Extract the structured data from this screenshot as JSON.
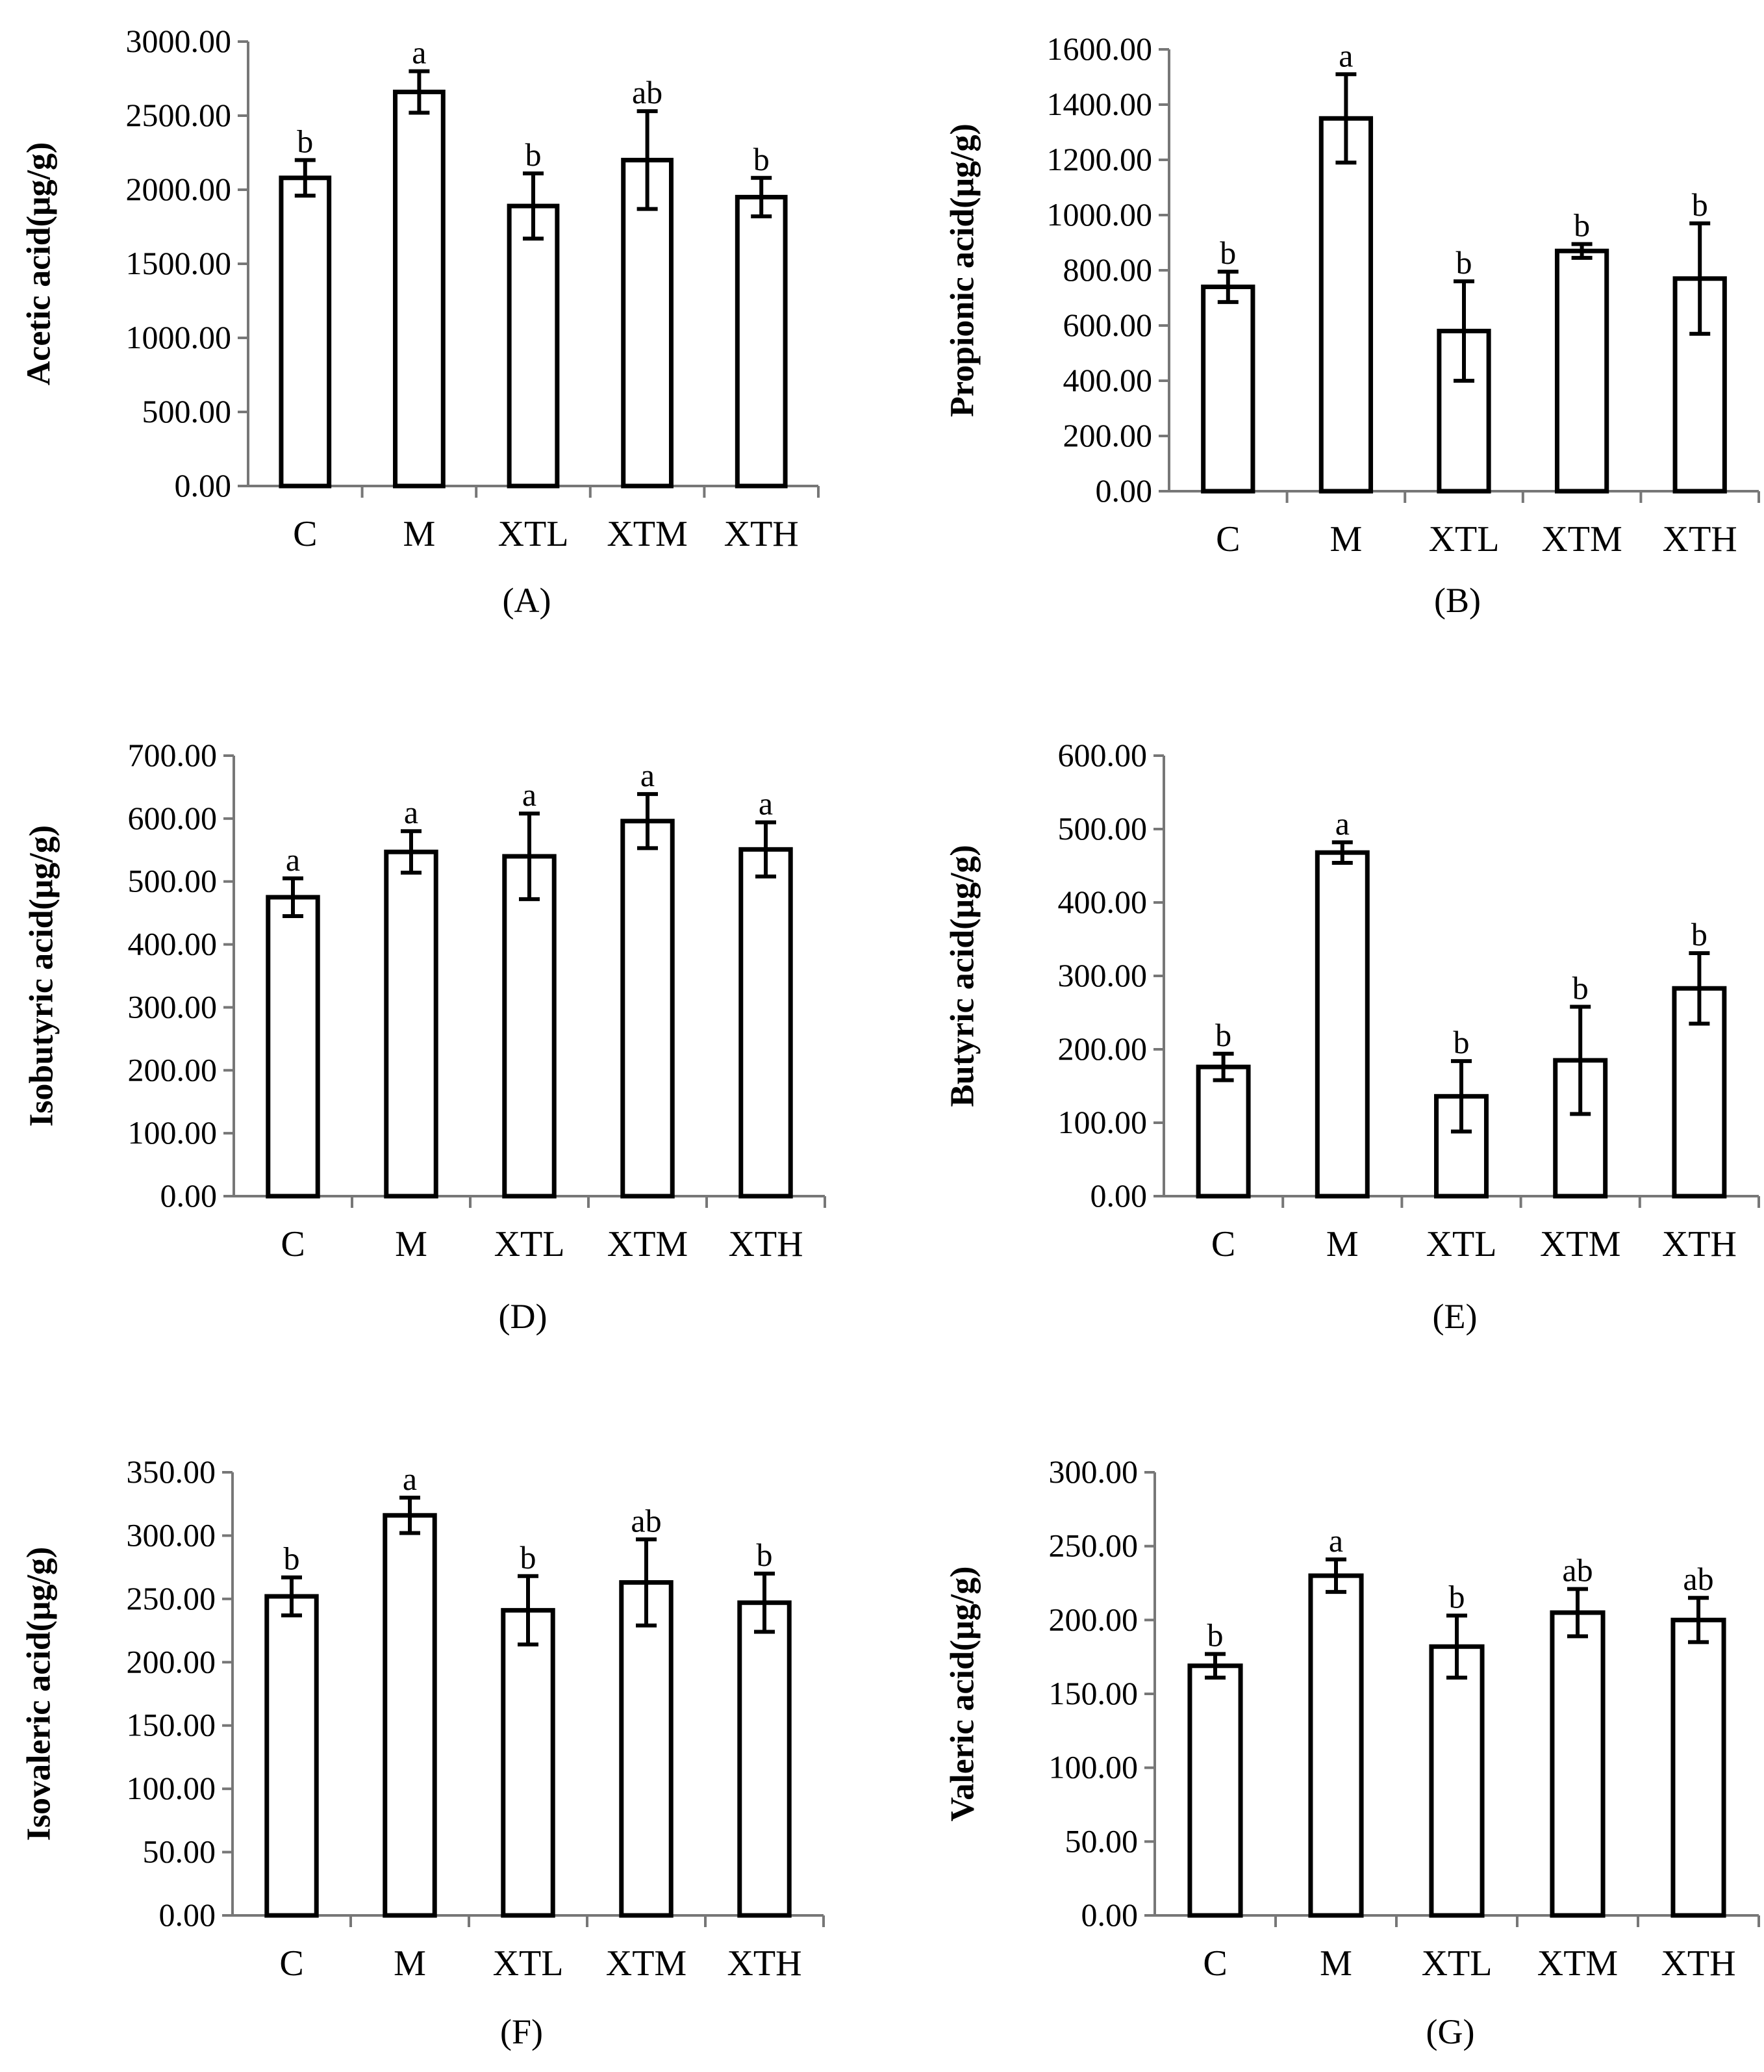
{
  "chart_data": [
    {
      "type": "bar",
      "caption": "(A)",
      "ylabel": "Acetic acid(μg/g)",
      "categories": [
        "C",
        "M",
        "XTL",
        "XTM",
        "XTH"
      ],
      "values": [
        2080,
        2660,
        1890,
        2200,
        1950
      ],
      "errors": [
        120,
        140,
        220,
        330,
        130
      ],
      "labels": [
        "b",
        "a",
        "b",
        "ab",
        "b"
      ],
      "ylim": [
        0,
        3000
      ],
      "yticks": [
        "0.00",
        "500.00",
        "1000.00",
        "1500.00",
        "2000.00",
        "2500.00",
        "3000.00"
      ]
    },
    {
      "type": "bar",
      "caption": "(B)",
      "ylabel": "Propionic acid(μg/g)",
      "categories": [
        "C",
        "M",
        "XTL",
        "XTM",
        "XTH"
      ],
      "values": [
        740,
        1350,
        580,
        870,
        770
      ],
      "errors": [
        55,
        160,
        180,
        25,
        200
      ],
      "labels": [
        "b",
        "a",
        "b",
        "b",
        "b"
      ],
      "ylim": [
        0,
        1600
      ],
      "yticks": [
        "0.00",
        "200.00",
        "400.00",
        "600.00",
        "800.00",
        "1000.00",
        "1200.00",
        "1400.00",
        "1600.00"
      ]
    },
    {
      "type": "bar",
      "caption": "(D)",
      "ylabel": "Isobutyric acid(μg/g)",
      "categories": [
        "C",
        "M",
        "XTL",
        "XTM",
        "XTH"
      ],
      "values": [
        475,
        547,
        540,
        596,
        551
      ],
      "errors": [
        30,
        33,
        68,
        43,
        43
      ],
      "labels": [
        "a",
        "a",
        "a",
        "a",
        "a"
      ],
      "ylim": [
        0,
        700
      ],
      "yticks": [
        "0.00",
        "100.00",
        "200.00",
        "300.00",
        "400.00",
        "500.00",
        "600.00",
        "700.00"
      ]
    },
    {
      "type": "bar",
      "caption": "(E)",
      "ylabel": "Butyric acid(μg/g)",
      "categories": [
        "C",
        "M",
        "XTL",
        "XTM",
        "XTH"
      ],
      "values": [
        176,
        468,
        136,
        185,
        283
      ],
      "errors": [
        18,
        14,
        48,
        73,
        48
      ],
      "labels": [
        "b",
        "a",
        "b",
        "b",
        "b"
      ],
      "ylim": [
        0,
        600
      ],
      "yticks": [
        "0.00",
        "100.00",
        "200.00",
        "300.00",
        "400.00",
        "500.00",
        "600.00"
      ]
    },
    {
      "type": "bar",
      "caption": "(F)",
      "ylabel": "Isovaleric acid(μg/g)",
      "categories": [
        "C",
        "M",
        "XTL",
        "XTM",
        "XTH"
      ],
      "values": [
        252,
        316,
        241,
        263,
        247
      ],
      "errors": [
        15,
        14,
        27,
        34,
        23
      ],
      "labels": [
        "b",
        "a",
        "b",
        "ab",
        "b"
      ],
      "ylim": [
        0,
        350
      ],
      "yticks": [
        "0.00",
        "50.00",
        "100.00",
        "150.00",
        "200.00",
        "250.00",
        "300.00",
        "350.00"
      ]
    },
    {
      "type": "bar",
      "caption": "(G)",
      "ylabel": "Valeric acid(μg/g)",
      "categories": [
        "C",
        "M",
        "XTL",
        "XTM",
        "XTH"
      ],
      "values": [
        169,
        230,
        182,
        205,
        200
      ],
      "errors": [
        8,
        11,
        21,
        16,
        15
      ],
      "labels": [
        "b",
        "a",
        "b",
        "ab",
        "ab"
      ],
      "ylim": [
        0,
        300
      ],
      "yticks": [
        "0.00",
        "50.00",
        "100.00",
        "150.00",
        "200.00",
        "250.00",
        "300.00"
      ]
    }
  ]
}
